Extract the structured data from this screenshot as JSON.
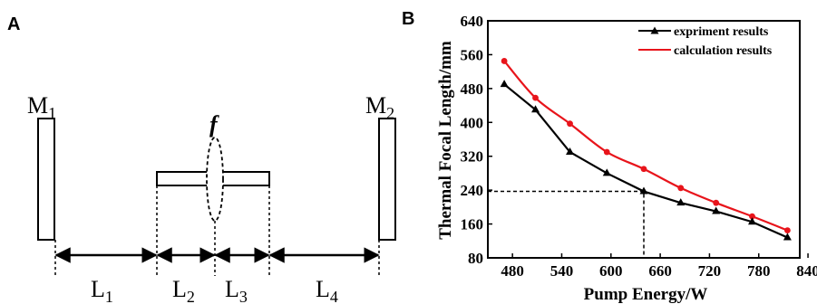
{
  "panel_a": {
    "label": "A",
    "mirror_left": {
      "main": "M",
      "sub": "1"
    },
    "mirror_right": {
      "main": "M",
      "sub": "2"
    },
    "lens": "f",
    "distances": [
      {
        "main": "L",
        "sub": "1"
      },
      {
        "main": "L",
        "sub": "2"
      },
      {
        "main": "L",
        "sub": "3"
      },
      {
        "main": "L",
        "sub": "4"
      }
    ]
  },
  "panel_b": {
    "label": "B"
  },
  "chart_data": {
    "type": "line",
    "xlabel": "Pump Energy/W",
    "ylabel": "Thermal Focal Length/mm",
    "xlim": [
      450,
      830
    ],
    "ylim": [
      80,
      640
    ],
    "xticks": [
      480,
      540,
      600,
      660,
      720,
      780,
      840
    ],
    "yticks": [
      80,
      160,
      240,
      320,
      400,
      480,
      560,
      640
    ],
    "legend_position": "top-right",
    "series": [
      {
        "name": "expriment results",
        "color": "#000000",
        "marker": "triangle",
        "x": [
          470,
          508,
          550,
          595,
          640,
          685,
          728,
          772,
          815
        ],
        "y": [
          490,
          430,
          330,
          280,
          237,
          210,
          190,
          165,
          128
        ]
      },
      {
        "name": "calculation results",
        "color": "#e8141b",
        "marker": "circle",
        "x": [
          470,
          508,
          550,
          595,
          640,
          685,
          728,
          772,
          815
        ],
        "y": [
          545,
          458,
          397,
          330,
          290,
          245,
          210,
          178,
          145
        ]
      }
    ],
    "annotation": {
      "x": 640,
      "y": 237,
      "style": "dashed"
    }
  }
}
